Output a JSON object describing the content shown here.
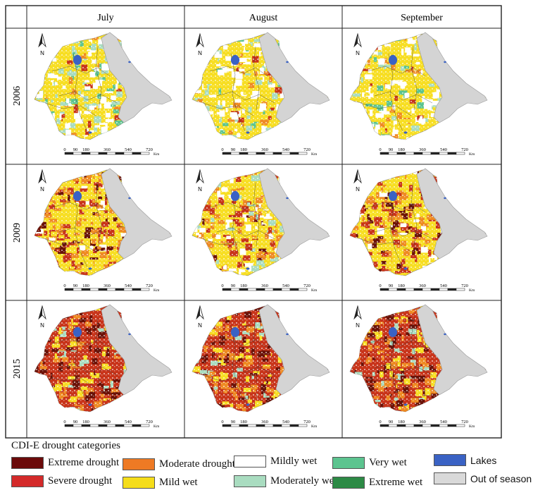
{
  "columns": [
    "July",
    "August",
    "September"
  ],
  "rows": [
    "2006",
    "2009",
    "2015"
  ],
  "scale_bar": {
    "ticks": [
      "0",
      "90",
      "180",
      "360",
      "540",
      "720"
    ],
    "unit": "Km"
  },
  "north_label": "N",
  "legend": {
    "title": "CDI-E drought categories",
    "items": [
      {
        "label": "Extreme drought",
        "color": "#6b0a0a"
      },
      {
        "label": "Severe drought",
        "color": "#d42a2a"
      },
      {
        "label": "Moderate drought",
        "color": "#ee7a24"
      },
      {
        "label": "Mild wet",
        "color": "#f5dd1a"
      },
      {
        "label": "Mildly wet",
        "color": "#ffffff"
      },
      {
        "label": "Moderately wet",
        "color": "#a9dcc0"
      },
      {
        "label": "Very wet",
        "color": "#5cc48f"
      },
      {
        "label": "Extreme wet",
        "color": "#2c8a45"
      },
      {
        "label": "Lakes",
        "color": "#3a62c4"
      },
      {
        "label": "Out of season",
        "color": "#d9d9d9"
      }
    ]
  },
  "panel_dominant": [
    [
      "mixed-wet",
      "mild-wet",
      "mild-wet"
    ],
    [
      "drought",
      "mixed",
      "drought"
    ],
    [
      "severe",
      "severe",
      "severe"
    ]
  ],
  "colors": {
    "out_of_season": "#d4d4d4",
    "mild": "#f7de22",
    "moderate": "#ee8a22",
    "severe": "#c8341a",
    "extreme": "#6b1208",
    "very_wet": "#5cc48f",
    "moderately_wet": "#a9dcc0",
    "extreme_wet": "#2c8a45",
    "mildly_wet": "#ffffff",
    "lake": "#3a62c4"
  }
}
